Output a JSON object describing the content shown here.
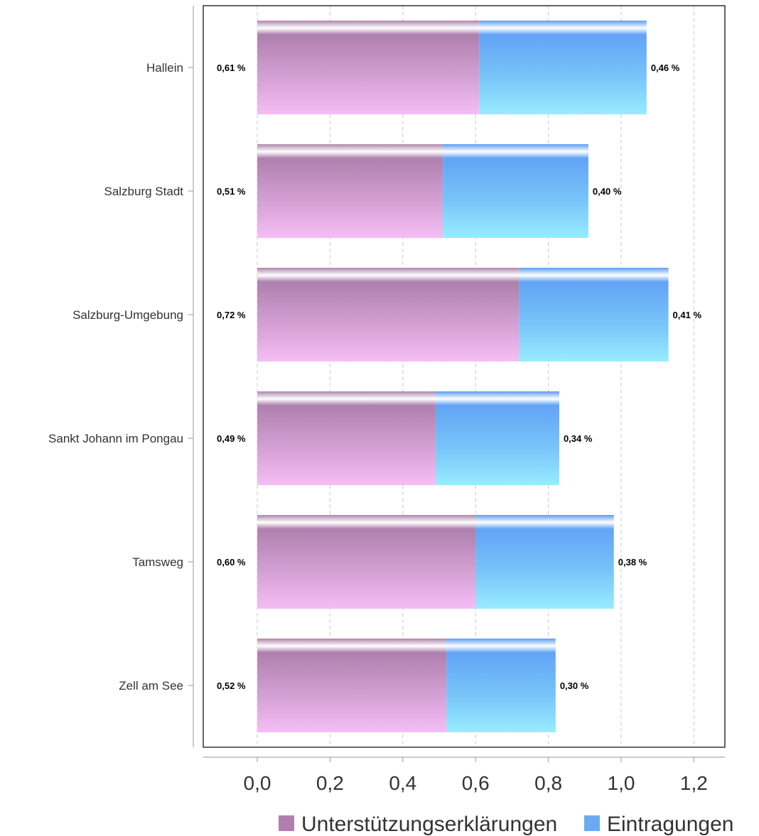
{
  "chart_data": {
    "type": "bar",
    "orientation": "horizontal",
    "stacked": true,
    "categories": [
      "Hallein",
      "Salzburg Stadt",
      "Salzburg-Umgebung",
      "Sankt Johann im Pongau",
      "Tamsweg",
      "Zell am See"
    ],
    "series": [
      {
        "name": "Unterstützungserklärungen",
        "color": "#b07fae",
        "values": [
          0.61,
          0.51,
          0.72,
          0.49,
          0.6,
          0.52
        ],
        "labels": [
          "0,61 %",
          "0,51 %",
          "0,72 %",
          "0,49 %",
          "0,60 %",
          "0,52 %"
        ]
      },
      {
        "name": "Eintragungen",
        "color": "#6aaaf5",
        "values": [
          0.46,
          0.4,
          0.41,
          0.34,
          0.38,
          0.3
        ],
        "labels": [
          "0,46 %",
          "0,40 %",
          "0,41 %",
          "0,34 %",
          "0,38 %",
          "0,30 %"
        ]
      }
    ],
    "xlim": [
      -0.15,
      1.28
    ],
    "xticks": [
      0,
      0.2,
      0.4,
      0.6,
      0.8,
      1.0,
      1.2
    ],
    "xtick_labels": [
      "0,0",
      "0,2",
      "0,4",
      "0,6",
      "0,8",
      "1,0",
      "1,2"
    ],
    "grid": "vertical dashed",
    "legend": "bottom-right",
    "title": "",
    "xlabel": "",
    "ylabel": ""
  }
}
